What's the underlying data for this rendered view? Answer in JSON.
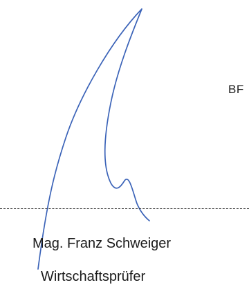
{
  "document": {
    "side_label": "BF",
    "signer_name": "Mag. Franz Schweiger",
    "signer_title": "Wirtschaftsprüfer"
  },
  "colors": {
    "signature_ink": "#3b63b8",
    "text": "#1a1a1a",
    "rule": "#2a2a2a"
  }
}
